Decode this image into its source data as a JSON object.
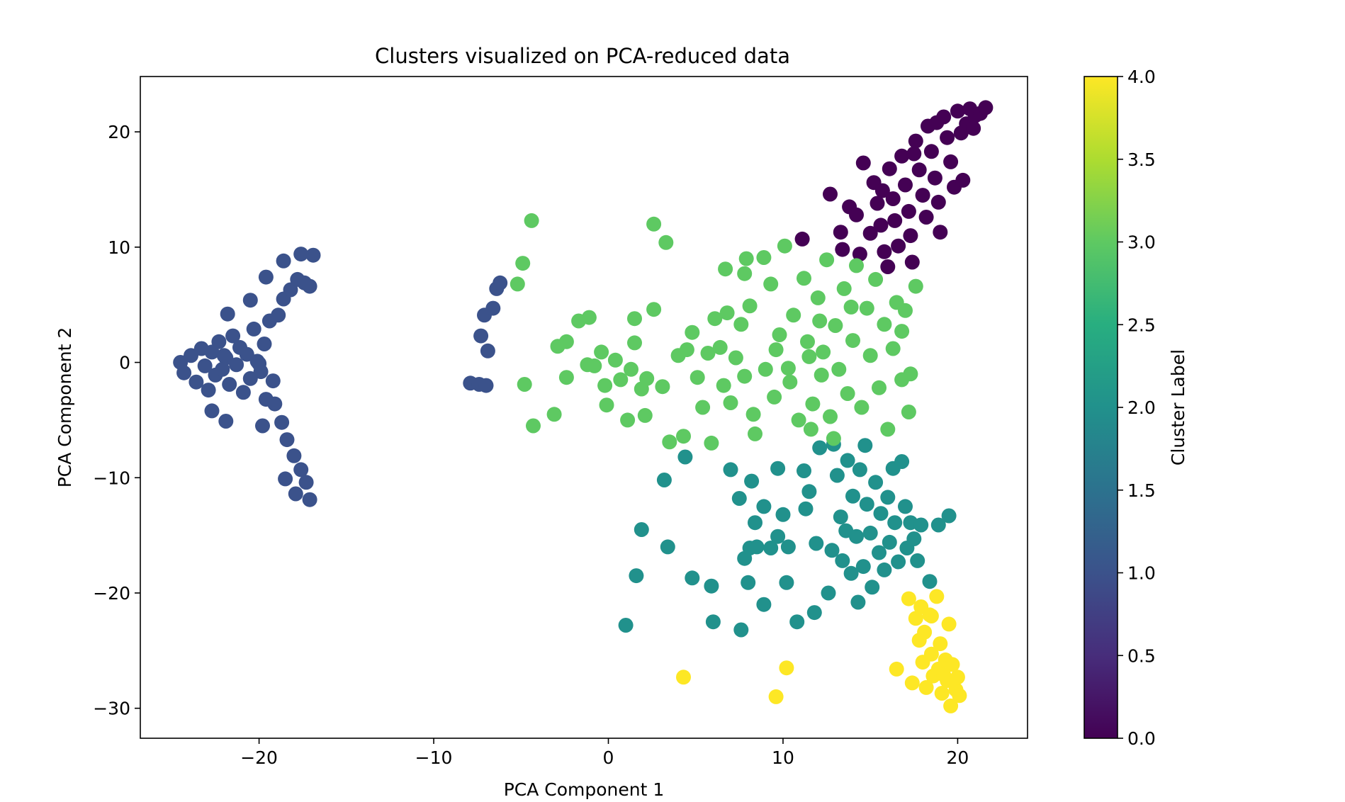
{
  "chart_data": {
    "type": "scatter",
    "title": "Clusters visualized on PCA-reduced data",
    "xlabel": "PCA Component 1",
    "ylabel": "PCA Component 2",
    "xlim": [
      -26.8,
      24.0
    ],
    "ylim": [
      -32.6,
      24.8
    ],
    "xticks": [
      -20,
      -10,
      0,
      10,
      20
    ],
    "xtick_labels": [
      "−20",
      "−10",
      "0",
      "10",
      "20"
    ],
    "yticks": [
      -30,
      -20,
      -10,
      0,
      10,
      20
    ],
    "ytick_labels": [
      "−30",
      "−20",
      "−10",
      "0",
      "10",
      "20"
    ],
    "grid": false,
    "legend": "none",
    "colormap": "viridis",
    "colorbar": {
      "label": "Cluster Label",
      "range": [
        0.0,
        4.0
      ],
      "ticks": [
        0.0,
        0.5,
        1.0,
        1.5,
        2.0,
        2.5,
        3.0,
        3.5,
        4.0
      ],
      "tick_labels": [
        "0.0",
        "0.5",
        "1.0",
        "1.5",
        "2.0",
        "2.5",
        "3.0",
        "3.5",
        "4.0"
      ]
    },
    "cluster_colors": {
      "0": "#440154",
      "1": "#3b528b",
      "2": "#21918c",
      "3": "#5ec962",
      "4": "#fde725"
    },
    "series": [
      {
        "cluster": 0,
        "points": [
          [
            11.1,
            10.7
          ],
          [
            12.7,
            14.6
          ],
          [
            13.8,
            13.5
          ],
          [
            13.3,
            11.3
          ],
          [
            13.4,
            9.8
          ],
          [
            14.4,
            9.4
          ],
          [
            14.6,
            17.3
          ],
          [
            15.0,
            11.2
          ],
          [
            15.2,
            15.6
          ],
          [
            15.4,
            13.8
          ],
          [
            15.6,
            11.9
          ],
          [
            15.8,
            9.6
          ],
          [
            16.1,
            16.8
          ],
          [
            16.3,
            14.2
          ],
          [
            16.4,
            12.3
          ],
          [
            16.6,
            10.1
          ],
          [
            16.8,
            17.9
          ],
          [
            17.0,
            15.4
          ],
          [
            17.2,
            13.1
          ],
          [
            17.3,
            11.0
          ],
          [
            17.4,
            8.7
          ],
          [
            17.6,
            19.2
          ],
          [
            17.8,
            16.7
          ],
          [
            18.0,
            14.5
          ],
          [
            18.2,
            12.6
          ],
          [
            18.3,
            20.5
          ],
          [
            18.5,
            18.3
          ],
          [
            18.7,
            16.0
          ],
          [
            18.9,
            13.9
          ],
          [
            19.0,
            11.3
          ],
          [
            19.2,
            21.3
          ],
          [
            19.4,
            19.5
          ],
          [
            19.6,
            17.4
          ],
          [
            19.8,
            15.2
          ],
          [
            20.0,
            21.8
          ],
          [
            20.2,
            19.9
          ],
          [
            20.3,
            15.8
          ],
          [
            20.5,
            20.7
          ],
          [
            20.7,
            22.0
          ],
          [
            21.0,
            21.4
          ],
          [
            21.3,
            21.6
          ],
          [
            21.6,
            22.1
          ],
          [
            16.0,
            8.3
          ],
          [
            14.2,
            12.8
          ],
          [
            15.7,
            14.9
          ],
          [
            17.5,
            18.1
          ],
          [
            18.8,
            20.8
          ],
          [
            20.9,
            20.3
          ]
        ]
      },
      {
        "cluster": 1,
        "points": [
          [
            -24.5,
            0.0
          ],
          [
            -24.3,
            -0.9
          ],
          [
            -23.9,
            0.6
          ],
          [
            -23.6,
            -1.7
          ],
          [
            -23.3,
            1.2
          ],
          [
            -23.1,
            -0.3
          ],
          [
            -22.9,
            -2.4
          ],
          [
            -22.7,
            0.9
          ],
          [
            -22.5,
            -1.1
          ],
          [
            -22.3,
            1.8
          ],
          [
            -22.1,
            -0.6
          ],
          [
            -21.9,
            0.4
          ],
          [
            -21.7,
            -1.9
          ],
          [
            -21.5,
            2.3
          ],
          [
            -21.3,
            -0.2
          ],
          [
            -21.1,
            1.3
          ],
          [
            -20.9,
            -2.6
          ],
          [
            -20.7,
            0.7
          ],
          [
            -20.5,
            -1.4
          ],
          [
            -20.3,
            2.9
          ],
          [
            -20.1,
            0.1
          ],
          [
            -19.9,
            -0.8
          ],
          [
            -19.7,
            1.6
          ],
          [
            -19.6,
            -3.2
          ],
          [
            -19.4,
            3.6
          ],
          [
            -19.2,
            -1.6
          ],
          [
            -19.1,
            -3.6
          ],
          [
            -18.9,
            4.1
          ],
          [
            -18.7,
            -5.2
          ],
          [
            -18.6,
            5.5
          ],
          [
            -18.4,
            -6.7
          ],
          [
            -18.2,
            6.3
          ],
          [
            -18.0,
            -8.1
          ],
          [
            -17.8,
            7.2
          ],
          [
            -17.6,
            -9.3
          ],
          [
            -17.4,
            6.9
          ],
          [
            -17.3,
            -10.4
          ],
          [
            -17.1,
            6.6
          ],
          [
            -16.9,
            9.3
          ],
          [
            -17.6,
            9.4
          ],
          [
            -18.6,
            8.8
          ],
          [
            -17.9,
            -11.4
          ],
          [
            -17.1,
            -11.9
          ],
          [
            -19.6,
            7.4
          ],
          [
            -20.5,
            5.4
          ],
          [
            -21.8,
            4.2
          ],
          [
            -22.7,
            -4.2
          ],
          [
            -21.9,
            -5.1
          ],
          [
            -19.8,
            -5.5
          ],
          [
            -18.5,
            -10.1
          ],
          [
            -20.0,
            -0.1
          ],
          [
            -22.0,
            0.6
          ],
          [
            -7.9,
            -1.8
          ],
          [
            -7.4,
            -1.9
          ],
          [
            -7.0,
            -2.0
          ],
          [
            -7.3,
            2.3
          ],
          [
            -6.9,
            1.0
          ],
          [
            -7.1,
            4.1
          ],
          [
            -6.6,
            4.7
          ],
          [
            -6.4,
            6.4
          ],
          [
            -6.2,
            6.9
          ]
        ]
      },
      {
        "cluster": 2,
        "points": [
          [
            3.2,
            -10.2
          ],
          [
            4.4,
            -8.2
          ],
          [
            3.4,
            -16.0
          ],
          [
            1.9,
            -14.5
          ],
          [
            1.6,
            -18.5
          ],
          [
            1.0,
            -22.8
          ],
          [
            4.8,
            -18.7
          ],
          [
            5.9,
            -19.4
          ],
          [
            6.0,
            -22.5
          ],
          [
            7.0,
            -9.3
          ],
          [
            7.5,
            -11.8
          ],
          [
            7.6,
            -23.2
          ],
          [
            7.8,
            -17.0
          ],
          [
            8.0,
            -19.1
          ],
          [
            8.1,
            -16.1
          ],
          [
            8.2,
            -10.3
          ],
          [
            8.4,
            -13.9
          ],
          [
            8.5,
            -16.0
          ],
          [
            8.9,
            -12.5
          ],
          [
            8.9,
            -21.0
          ],
          [
            9.3,
            -16.1
          ],
          [
            9.7,
            -9.2
          ],
          [
            9.7,
            -15.1
          ],
          [
            10.0,
            -13.2
          ],
          [
            10.2,
            -19.1
          ],
          [
            10.3,
            -16.0
          ],
          [
            10.8,
            -22.5
          ],
          [
            11.2,
            -9.4
          ],
          [
            11.3,
            -12.7
          ],
          [
            11.5,
            -11.2
          ],
          [
            11.8,
            -21.7
          ],
          [
            11.9,
            -15.7
          ],
          [
            12.1,
            -7.4
          ],
          [
            12.6,
            -20.0
          ],
          [
            12.8,
            -16.3
          ],
          [
            13.1,
            -9.8
          ],
          [
            13.3,
            -13.4
          ],
          [
            13.4,
            -17.2
          ],
          [
            13.6,
            -14.6
          ],
          [
            13.7,
            -8.5
          ],
          [
            13.9,
            -18.3
          ],
          [
            14.0,
            -11.6
          ],
          [
            14.2,
            -15.1
          ],
          [
            14.3,
            -20.8
          ],
          [
            14.4,
            -9.3
          ],
          [
            14.6,
            -17.7
          ],
          [
            14.8,
            -12.3
          ],
          [
            15.0,
            -14.8
          ],
          [
            15.1,
            -19.5
          ],
          [
            15.3,
            -10.4
          ],
          [
            15.5,
            -16.5
          ],
          [
            15.6,
            -13.1
          ],
          [
            15.8,
            -18.0
          ],
          [
            16.0,
            -11.7
          ],
          [
            16.1,
            -15.6
          ],
          [
            16.3,
            -9.2
          ],
          [
            16.4,
            -13.9
          ],
          [
            16.6,
            -17.3
          ],
          [
            16.8,
            -8.6
          ],
          [
            17.0,
            -12.5
          ],
          [
            17.1,
            -16.1
          ],
          [
            17.3,
            -13.9
          ],
          [
            17.5,
            -15.3
          ],
          [
            17.7,
            -17.2
          ],
          [
            17.9,
            -14.1
          ],
          [
            18.4,
            -19.0
          ],
          [
            18.9,
            -14.1
          ],
          [
            19.5,
            -13.3
          ],
          [
            14.7,
            -7.2
          ],
          [
            12.9,
            -7.1
          ]
        ]
      },
      {
        "cluster": 3,
        "points": [
          [
            -4.4,
            12.3
          ],
          [
            -4.9,
            8.6
          ],
          [
            -5.2,
            6.8
          ],
          [
            -4.8,
            -1.9
          ],
          [
            -4.3,
            -5.5
          ],
          [
            -3.1,
            -4.5
          ],
          [
            -2.9,
            1.4
          ],
          [
            -2.4,
            1.8
          ],
          [
            -2.4,
            -1.3
          ],
          [
            -1.7,
            3.6
          ],
          [
            -1.1,
            3.9
          ],
          [
            -1.2,
            -0.2
          ],
          [
            -0.8,
            -0.3
          ],
          [
            -0.4,
            0.9
          ],
          [
            -0.2,
            -2.0
          ],
          [
            -0.1,
            -3.7
          ],
          [
            0.4,
            0.2
          ],
          [
            0.7,
            -1.5
          ],
          [
            1.1,
            -5.0
          ],
          [
            1.3,
            -0.6
          ],
          [
            1.5,
            3.8
          ],
          [
            1.5,
            1.7
          ],
          [
            1.9,
            -2.3
          ],
          [
            2.1,
            -4.6
          ],
          [
            2.2,
            -1.4
          ],
          [
            2.6,
            4.6
          ],
          [
            2.6,
            12.0
          ],
          [
            3.1,
            -2.1
          ],
          [
            3.3,
            10.4
          ],
          [
            3.5,
            -6.9
          ],
          [
            4.0,
            0.6
          ],
          [
            4.3,
            -6.4
          ],
          [
            4.5,
            1.1
          ],
          [
            4.8,
            2.6
          ],
          [
            5.1,
            -1.3
          ],
          [
            5.4,
            -3.9
          ],
          [
            5.7,
            0.8
          ],
          [
            5.9,
            -7.0
          ],
          [
            6.1,
            3.8
          ],
          [
            6.4,
            1.3
          ],
          [
            6.6,
            -2.0
          ],
          [
            6.8,
            4.3
          ],
          [
            7.0,
            -3.5
          ],
          [
            7.3,
            0.4
          ],
          [
            7.6,
            3.3
          ],
          [
            7.8,
            -1.2
          ],
          [
            8.1,
            4.9
          ],
          [
            8.3,
            -4.5
          ],
          [
            8.4,
            -6.2
          ],
          [
            8.9,
            9.1
          ],
          [
            9.0,
            -0.6
          ],
          [
            9.3,
            6.8
          ],
          [
            9.5,
            -3.0
          ],
          [
            9.8,
            2.4
          ],
          [
            10.1,
            10.1
          ],
          [
            10.4,
            -1.7
          ],
          [
            10.6,
            4.1
          ],
          [
            10.9,
            -5.0
          ],
          [
            11.2,
            7.3
          ],
          [
            11.5,
            0.5
          ],
          [
            11.7,
            -3.6
          ],
          [
            12.0,
            5.6
          ],
          [
            12.2,
            -1.1
          ],
          [
            12.5,
            8.9
          ],
          [
            12.7,
            -4.7
          ],
          [
            13.0,
            3.2
          ],
          [
            13.2,
            -0.6
          ],
          [
            13.5,
            6.4
          ],
          [
            13.7,
            -2.7
          ],
          [
            14.0,
            1.9
          ],
          [
            14.2,
            8.4
          ],
          [
            14.5,
            -3.9
          ],
          [
            14.8,
            4.7
          ],
          [
            15.0,
            0.6
          ],
          [
            15.3,
            7.2
          ],
          [
            15.5,
            -2.2
          ],
          [
            15.8,
            3.3
          ],
          [
            16.0,
            -5.8
          ],
          [
            16.3,
            1.2
          ],
          [
            16.5,
            5.2
          ],
          [
            16.8,
            -1.5
          ],
          [
            17.0,
            4.5
          ],
          [
            17.2,
            -4.3
          ],
          [
            17.3,
            -1.0
          ],
          [
            17.6,
            6.6
          ],
          [
            16.8,
            2.7
          ],
          [
            7.9,
            9.0
          ],
          [
            6.7,
            8.1
          ],
          [
            7.8,
            7.7
          ],
          [
            11.6,
            -5.8
          ],
          [
            12.9,
            -6.6
          ],
          [
            10.3,
            -0.5
          ],
          [
            11.4,
            1.8
          ],
          [
            12.1,
            3.6
          ],
          [
            9.6,
            1.1
          ],
          [
            13.9,
            4.8
          ],
          [
            12.3,
            0.9
          ]
        ]
      },
      {
        "cluster": 4,
        "points": [
          [
            4.3,
            -27.3
          ],
          [
            9.6,
            -29.0
          ],
          [
            10.2,
            -26.5
          ],
          [
            16.5,
            -26.6
          ],
          [
            17.2,
            -20.5
          ],
          [
            17.4,
            -27.8
          ],
          [
            17.6,
            -22.2
          ],
          [
            17.8,
            -24.1
          ],
          [
            17.9,
            -21.2
          ],
          [
            18.0,
            -26.0
          ],
          [
            18.1,
            -23.4
          ],
          [
            18.2,
            -28.2
          ],
          [
            18.4,
            -21.9
          ],
          [
            18.5,
            -25.3
          ],
          [
            18.6,
            -27.2
          ],
          [
            18.8,
            -20.3
          ],
          [
            18.9,
            -26.6
          ],
          [
            19.0,
            -24.4
          ],
          [
            19.1,
            -28.7
          ],
          [
            19.3,
            -25.8
          ],
          [
            19.4,
            -27.6
          ],
          [
            19.5,
            -22.7
          ],
          [
            19.6,
            -29.8
          ],
          [
            19.7,
            -26.2
          ],
          [
            19.9,
            -28.4
          ],
          [
            20.0,
            -27.3
          ],
          [
            20.1,
            -28.9
          ],
          [
            18.5,
            -22.0
          ],
          [
            19.2,
            -27.1
          ]
        ]
      }
    ]
  }
}
